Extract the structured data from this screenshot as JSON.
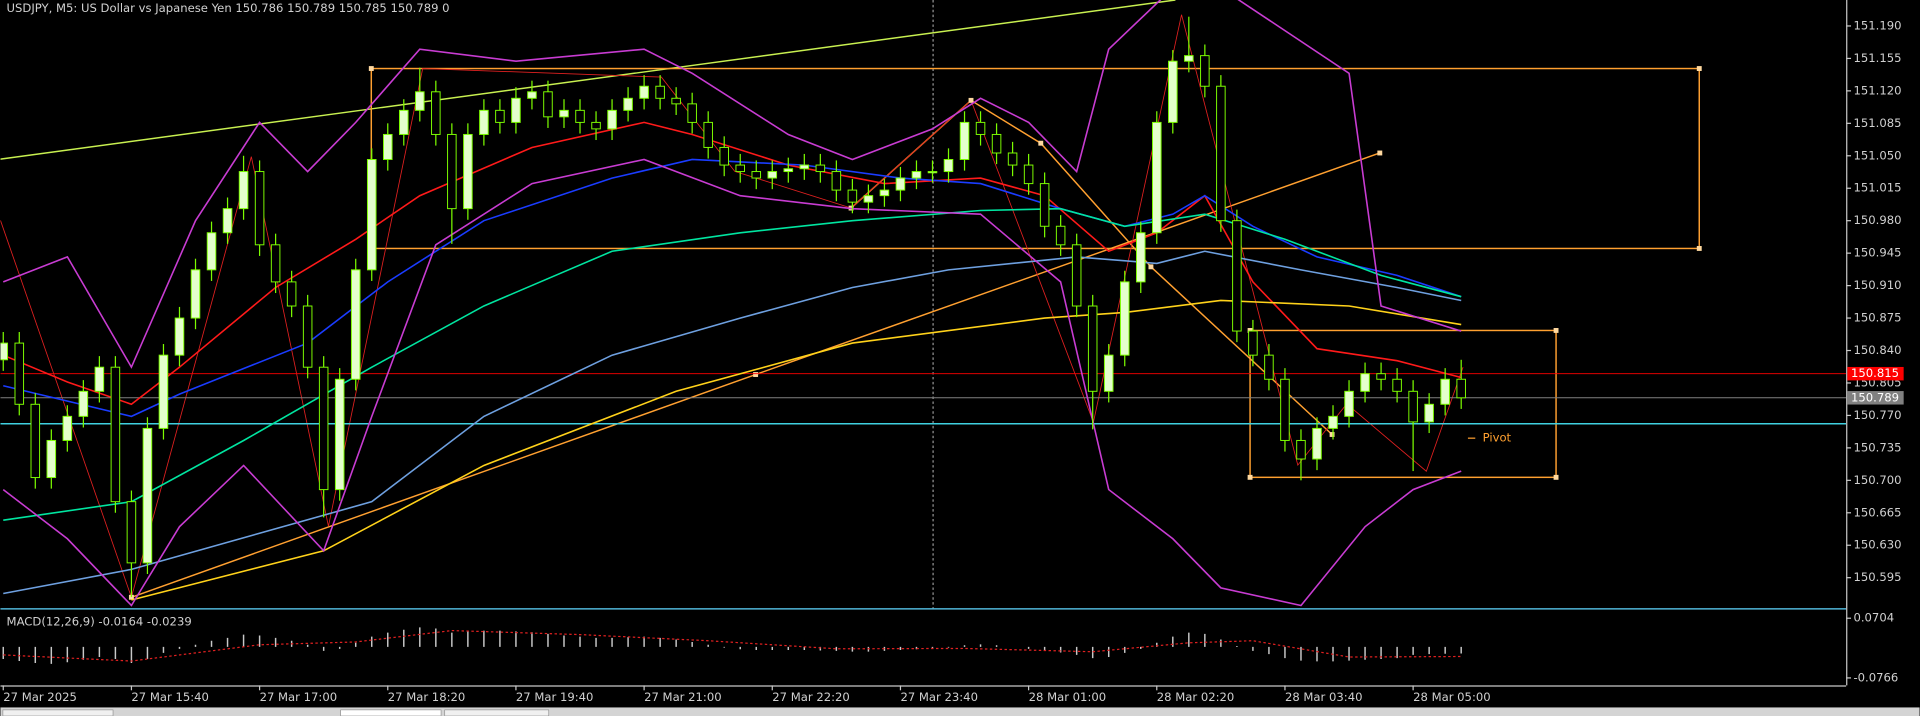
{
  "chart_data": [
    {
      "type": "candlestick",
      "title": "USDJPY, M5:  US Dollar vs Japanese Yen  150.786 150.789 150.785 150.789  0",
      "categories": [
        "27 Mar 2025",
        null,
        null,
        null,
        null,
        null,
        null,
        null,
        "27 Mar 15:40",
        null,
        null,
        null,
        null,
        null,
        null,
        null,
        "27 Mar 17:00",
        null,
        null,
        null,
        null,
        null,
        null,
        null,
        "27 Mar 18:20",
        null,
        null,
        null,
        null,
        null,
        null,
        null,
        "27 Mar 19:40",
        null,
        null,
        null,
        null,
        null,
        null,
        null,
        "27 Mar 21:00",
        null,
        null,
        null,
        null,
        null,
        null,
        null,
        "27 Mar 22:20",
        null,
        null,
        null,
        null,
        null,
        null,
        null,
        "27 Mar 23:40",
        null,
        null,
        null,
        null,
        null,
        null,
        null,
        "28 Mar 01:00",
        null,
        null,
        null,
        null,
        null,
        null,
        null,
        "28 Mar 02:20",
        null,
        null,
        null,
        null,
        null,
        null,
        null,
        "28 Mar 03:40",
        null,
        null,
        null,
        null,
        null,
        null,
        null,
        "28 Mar 05:00",
        null,
        null,
        null
      ],
      "open": [
        150.83,
        150.848,
        150.782,
        150.703,
        150.743,
        150.769,
        150.796,
        150.822,
        150.677,
        150.611,
        150.756,
        150.835,
        150.875,
        150.927,
        150.967,
        150.993,
        151.033,
        150.954,
        150.914,
        150.888,
        150.822,
        150.69,
        150.809,
        150.927,
        151.046,
        151.073,
        151.099,
        151.119,
        151.073,
        150.993,
        151.073,
        151.099,
        151.086,
        151.112,
        151.119,
        151.092,
        151.099,
        151.086,
        151.079,
        151.099,
        151.112,
        151.125,
        151.112,
        151.106,
        151.086,
        151.059,
        151.04,
        151.033,
        151.026,
        151.033,
        151.036,
        151.04,
        151.033,
        151.013,
        151.0,
        151.007,
        151.013,
        151.026,
        151.033,
        151.033,
        151.046,
        151.086,
        151.073,
        151.053,
        151.04,
        151.02,
        150.974,
        150.954,
        150.888,
        150.796,
        150.835,
        150.914,
        150.967,
        151.086,
        151.152,
        151.158,
        151.125,
        150.98,
        150.861,
        150.835,
        150.809,
        150.743,
        150.723,
        150.756,
        150.769,
        150.796,
        150.815,
        150.809,
        150.796,
        150.763,
        150.782,
        150.809
      ],
      "high": [
        150.86,
        150.86,
        150.794,
        150.755,
        150.781,
        150.808,
        150.834,
        150.834,
        150.689,
        150.768,
        150.847,
        150.887,
        150.939,
        150.979,
        151.005,
        151.05,
        151.045,
        150.966,
        150.926,
        150.9,
        150.834,
        150.821,
        150.939,
        151.058,
        151.085,
        151.111,
        151.145,
        151.131,
        151.085,
        151.085,
        151.111,
        151.111,
        151.124,
        151.131,
        151.131,
        151.111,
        151.111,
        151.098,
        151.111,
        151.124,
        151.137,
        151.137,
        151.124,
        151.118,
        151.098,
        151.071,
        151.052,
        151.045,
        151.045,
        151.048,
        151.052,
        151.052,
        151.045,
        151.025,
        151.019,
        151.025,
        151.038,
        151.045,
        151.045,
        151.058,
        151.098,
        151.098,
        151.085,
        151.065,
        151.052,
        151.032,
        150.986,
        150.966,
        150.9,
        150.847,
        150.926,
        150.979,
        151.098,
        151.164,
        151.2,
        151.17,
        151.137,
        150.992,
        150.873,
        150.847,
        150.821,
        150.755,
        150.768,
        150.781,
        150.808,
        150.827,
        150.827,
        150.821,
        150.808,
        150.794,
        150.821,
        150.83
      ],
      "low": [
        150.818,
        150.77,
        150.691,
        150.691,
        150.731,
        150.757,
        150.784,
        150.665,
        150.574,
        150.599,
        150.744,
        150.823,
        150.863,
        150.915,
        150.955,
        150.981,
        150.942,
        150.902,
        150.876,
        150.81,
        150.66,
        150.678,
        150.797,
        150.915,
        151.034,
        151.061,
        151.087,
        151.061,
        150.955,
        150.981,
        151.061,
        151.074,
        151.074,
        151.1,
        151.08,
        151.08,
        151.074,
        151.067,
        151.067,
        151.087,
        151.1,
        151.1,
        151.094,
        151.074,
        151.047,
        151.028,
        151.021,
        151.014,
        151.014,
        151.021,
        151.024,
        151.021,
        151.001,
        150.988,
        150.988,
        150.995,
        151.001,
        151.014,
        151.021,
        151.021,
        151.034,
        151.061,
        151.041,
        151.028,
        151.008,
        150.962,
        150.942,
        150.876,
        150.755,
        150.784,
        150.823,
        150.902,
        150.955,
        151.074,
        151.14,
        151.113,
        150.968,
        150.849,
        150.823,
        150.797,
        150.731,
        150.7,
        150.711,
        150.744,
        150.757,
        150.784,
        150.797,
        150.784,
        150.71,
        150.751,
        150.77,
        150.777
      ],
      "close": [
        150.848,
        150.782,
        150.703,
        150.743,
        150.769,
        150.796,
        150.822,
        150.677,
        150.611,
        150.756,
        150.835,
        150.875,
        150.927,
        150.967,
        150.993,
        151.033,
        150.954,
        150.914,
        150.888,
        150.822,
        150.69,
        150.809,
        150.927,
        151.046,
        151.073,
        151.099,
        151.119,
        151.073,
        150.993,
        151.073,
        151.099,
        151.086,
        151.112,
        151.119,
        151.092,
        151.099,
        151.086,
        151.079,
        151.099,
        151.112,
        151.125,
        151.112,
        151.106,
        151.086,
        151.059,
        151.04,
        151.033,
        151.026,
        151.033,
        151.036,
        151.04,
        151.033,
        151.013,
        151.0,
        151.007,
        151.013,
        151.026,
        151.033,
        151.033,
        151.046,
        151.086,
        151.073,
        151.053,
        151.04,
        151.02,
        150.974,
        150.954,
        150.888,
        150.796,
        150.835,
        150.914,
        150.967,
        151.086,
        151.152,
        151.158,
        151.125,
        150.98,
        150.861,
        150.835,
        150.809,
        150.743,
        150.723,
        150.756,
        150.769,
        150.796,
        150.815,
        150.809,
        150.796,
        150.763,
        150.782,
        150.809,
        150.789
      ],
      "up_color": "#e4ffcc",
      "down_color": "#000000",
      "wick_color": "#7cfc00",
      "lines": [
        {
          "color": "#ff1a1a",
          "x": [
            0,
            4,
            8,
            11,
            17,
            22,
            26,
            33,
            40,
            43,
            49,
            55,
            61,
            65,
            69,
            72,
            75,
            78,
            82,
            87,
            91
          ],
          "values": [
            150.835,
            150.806,
            150.782,
            150.822,
            150.908,
            150.96,
            151.007,
            151.059,
            151.086,
            151.073,
            151.04,
            151.02,
            151.026,
            151.007,
            150.947,
            150.967,
            151.007,
            150.914,
            150.842,
            150.829,
            150.811
          ]
        },
        {
          "color": "#1a3cff",
          "x": [
            0,
            8,
            11,
            19,
            24,
            30,
            38,
            43,
            50,
            56,
            61,
            66,
            70,
            73,
            75,
            78,
            82,
            87,
            91
          ],
          "values": [
            150.802,
            150.769,
            150.793,
            150.848,
            150.914,
            150.98,
            151.026,
            151.046,
            151.04,
            151.026,
            151.02,
            150.993,
            150.974,
            150.987,
            151.007,
            150.974,
            150.941,
            150.921,
            150.898
          ]
        },
        {
          "color": "#00e5a0",
          "x": [
            0,
            8,
            15,
            23,
            30,
            38,
            46,
            53,
            61,
            66,
            70,
            75,
            80,
            86,
            91
          ],
          "values": [
            150.657,
            150.677,
            150.743,
            150.822,
            150.888,
            150.947,
            150.967,
            150.98,
            150.991,
            150.993,
            150.974,
            150.987,
            150.96,
            150.921,
            150.898
          ]
        },
        {
          "color": "#6ea0e0",
          "x": [
            0,
            8,
            23,
            30,
            38,
            46,
            53,
            59,
            67,
            72,
            75,
            81,
            87,
            91
          ],
          "values": [
            150.578,
            150.604,
            150.677,
            150.769,
            150.835,
            150.875,
            150.908,
            150.927,
            150.941,
            150.934,
            150.947,
            150.927,
            150.908,
            150.894
          ]
        },
        {
          "color": "#ffd21a",
          "x": [
            8,
            20,
            30,
            42,
            53,
            65,
            70,
            76,
            84,
            91
          ],
          "values": [
            150.571,
            150.624,
            150.716,
            150.796,
            150.848,
            150.875,
            150.881,
            150.894,
            150.888,
            150.868
          ]
        },
        {
          "color": "#c83cd2",
          "x": [
            0,
            4,
            8,
            12,
            16,
            19,
            22,
            26,
            32,
            40,
            43,
            49,
            53,
            58,
            61,
            64,
            67,
            69,
            73,
            76,
            84,
            86,
            91
          ],
          "values": [
            150.914,
            150.941,
            150.822,
            150.98,
            151.086,
            151.033,
            151.086,
            151.165,
            151.152,
            151.165,
            151.139,
            151.073,
            151.046,
            151.079,
            151.112,
            151.086,
            151.033,
            151.165,
            151.231,
            151.231,
            151.139,
            150.888,
            150.861
          ]
        },
        {
          "color": "#c83cd2",
          "x": [
            0,
            4,
            8,
            11,
            15,
            20,
            23,
            27,
            33,
            40,
            46,
            53,
            61,
            66,
            69,
            73,
            76,
            81,
            85,
            88,
            91
          ],
          "values": [
            150.69,
            150.637,
            150.565,
            150.65,
            150.716,
            150.624,
            150.769,
            150.954,
            151.02,
            151.046,
            151.007,
            150.993,
            150.987,
            150.914,
            150.69,
            150.637,
            150.584,
            150.565,
            150.65,
            150.69,
            150.71
          ]
        }
      ],
      "price_labels": [
        {
          "value": 150.815,
          "color": "#ff0000"
        },
        {
          "value": 150.789,
          "color": "#808080"
        }
      ],
      "levels": [
        {
          "value": 150.761,
          "color": "#3fd0e0"
        }
      ],
      "annotation": "Pivot",
      "ylim": [
        150.562,
        151.218
      ],
      "yticks": [
        {
          "value": 151.19,
          "label": "151.190"
        },
        151.155,
        {
          "value": 151.12,
          "label": "151.120"
        },
        151.085,
        {
          "value": 151.05,
          "label": "151.050"
        },
        151.015,
        {
          "value": 150.98,
          "label": "150.980"
        },
        150.945,
        {
          "value": 150.91,
          "label": "150.910"
        },
        150.875,
        {
          "value": 150.84,
          "label": "150.840"
        },
        150.805,
        {
          "value": 150.77,
          "label": "150.770"
        },
        150.735,
        {
          "value": 150.7,
          "label": "150.700"
        },
        150.665,
        {
          "value": 150.63,
          "label": "150.630"
        },
        150.595
      ]
    },
    {
      "type": "bar",
      "title": "MACD(12,26,9) -0.0164 -0.0239",
      "values": [
        -0.03,
        -0.035,
        -0.04,
        -0.042,
        -0.038,
        -0.032,
        -0.025,
        -0.03,
        -0.04,
        -0.03,
        -0.015,
        -0.005,
        0.005,
        0.015,
        0.022,
        0.03,
        0.028,
        0.022,
        0.015,
        0.005,
        -0.01,
        -0.005,
        0.01,
        0.025,
        0.035,
        0.042,
        0.048,
        0.045,
        0.035,
        0.038,
        0.04,
        0.04,
        0.038,
        0.036,
        0.032,
        0.028,
        0.025,
        0.022,
        0.022,
        0.024,
        0.025,
        0.022,
        0.018,
        0.012,
        0.005,
        -0.002,
        -0.006,
        -0.008,
        -0.008,
        -0.008,
        -0.008,
        -0.009,
        -0.01,
        -0.012,
        -0.012,
        -0.01,
        -0.008,
        -0.006,
        -0.004,
        -0.002,
        0.004,
        0.006,
        0.004,
        0.0,
        -0.005,
        -0.01,
        -0.014,
        -0.02,
        -0.028,
        -0.025,
        -0.015,
        -0.005,
        0.01,
        0.025,
        0.035,
        0.032,
        0.018,
        0.002,
        -0.01,
        -0.018,
        -0.028,
        -0.034,
        -0.036,
        -0.036,
        -0.034,
        -0.032,
        -0.03,
        -0.028,
        -0.02,
        -0.018,
        -0.017,
        -0.0164
      ],
      "color": "#c8c8c8",
      "signal": {
        "color": "#e02020",
        "x": [
          0,
          8,
          16,
          22,
          28,
          36,
          44,
          52,
          60,
          68,
          74,
          78,
          84,
          91
        ],
        "values": [
          -0.02,
          -0.035,
          0.005,
          0.012,
          0.04,
          0.03,
          0.015,
          -0.005,
          -0.004,
          -0.012,
          0.01,
          0.015,
          -0.025,
          -0.0239
        ]
      },
      "ylim": [
        -0.095,
        0.0888
      ],
      "yticks": [
        0.0704,
        -0.0766
      ]
    }
  ]
}
